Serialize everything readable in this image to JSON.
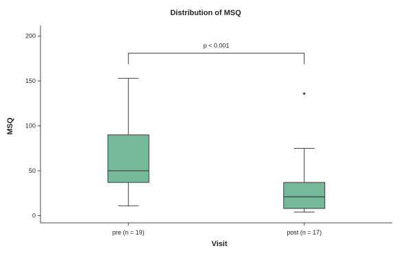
{
  "chart_data": {
    "type": "boxplot",
    "title": "Distribution of MSQ",
    "xlabel": "Visit",
    "ylabel": "MSQ",
    "ylim": [
      -8,
      212
    ],
    "yticks": [
      0,
      50,
      100,
      150,
      200
    ],
    "grid": false,
    "categories": [
      "pre (n = 19)",
      "post (n = 17)"
    ],
    "boxes": [
      {
        "category": "pre (n = 19)",
        "whisker_low": 11,
        "q1": 37,
        "median": 50,
        "q3": 90,
        "whisker_high": 153,
        "outliers": []
      },
      {
        "category": "post (n = 17)",
        "whisker_low": 4,
        "q1": 8,
        "median": 21,
        "q3": 37,
        "whisker_high": 75,
        "outliers": [
          136
        ]
      }
    ],
    "annotation": {
      "text": "p < 0.001",
      "between": [
        "pre (n = 19)",
        "post (n = 17)"
      ],
      "y": 181
    },
    "colors": {
      "box_fill": "#76b99a",
      "line": "#3a3a3a",
      "axis": "#444444"
    }
  }
}
